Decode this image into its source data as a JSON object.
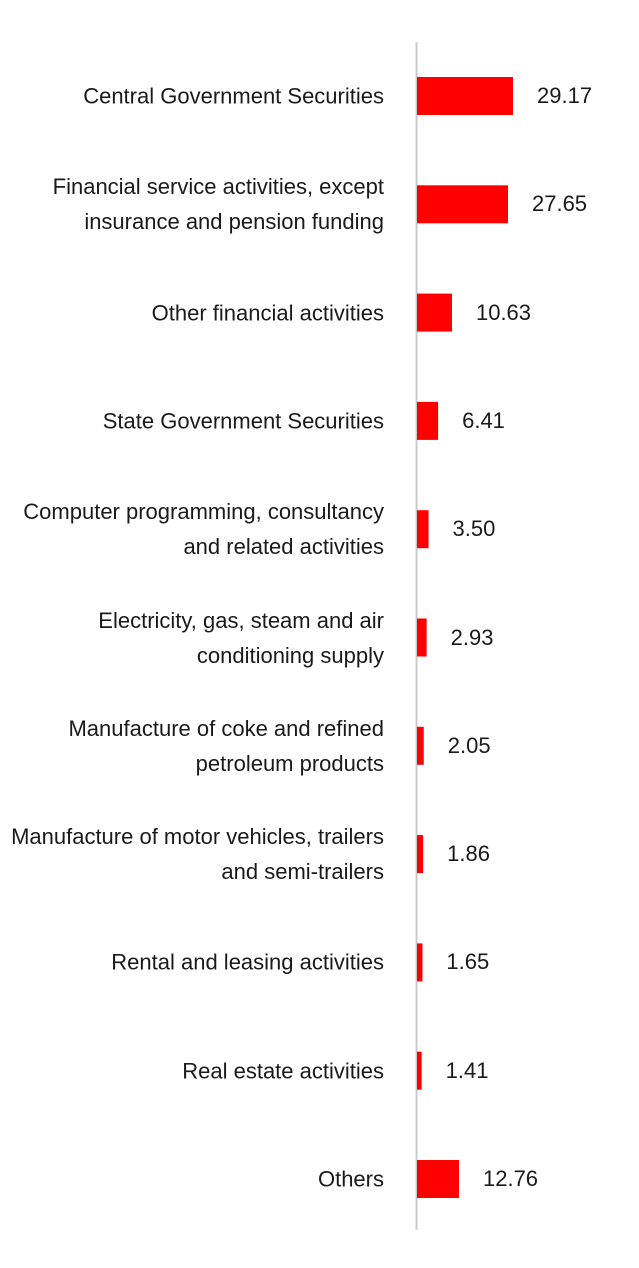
{
  "chart_data": {
    "type": "bar",
    "orientation": "horizontal",
    "bar_color": "#ff0000",
    "axis_color": "#c8c8c8",
    "categories": [
      "Central Government Securities",
      "Financial service activities, except insurance and pension funding",
      "Other financial activities",
      "State Government Securities",
      "Computer programming, consultancy and related activities",
      "Electricity, gas, steam and air conditioning supply",
      "Manufacture of coke and refined petroleum products",
      "Manufacture of motor vehicles, trailers and semi-trailers",
      "Rental and leasing activities",
      "Real estate activities",
      "Others"
    ],
    "values": [
      29.17,
      27.65,
      10.63,
      6.41,
      3.5,
      2.93,
      2.05,
      1.86,
      1.65,
      1.41,
      12.76
    ],
    "value_labels": [
      "29.17",
      "27.65",
      "10.63",
      "6.41",
      "3.50",
      "2.93",
      "2.05",
      "1.86",
      "1.65",
      "1.41",
      "12.76"
    ],
    "xlim": [
      0,
      30
    ],
    "grid": false,
    "legend": "none",
    "title": "",
    "xlabel": "",
    "ylabel": ""
  }
}
